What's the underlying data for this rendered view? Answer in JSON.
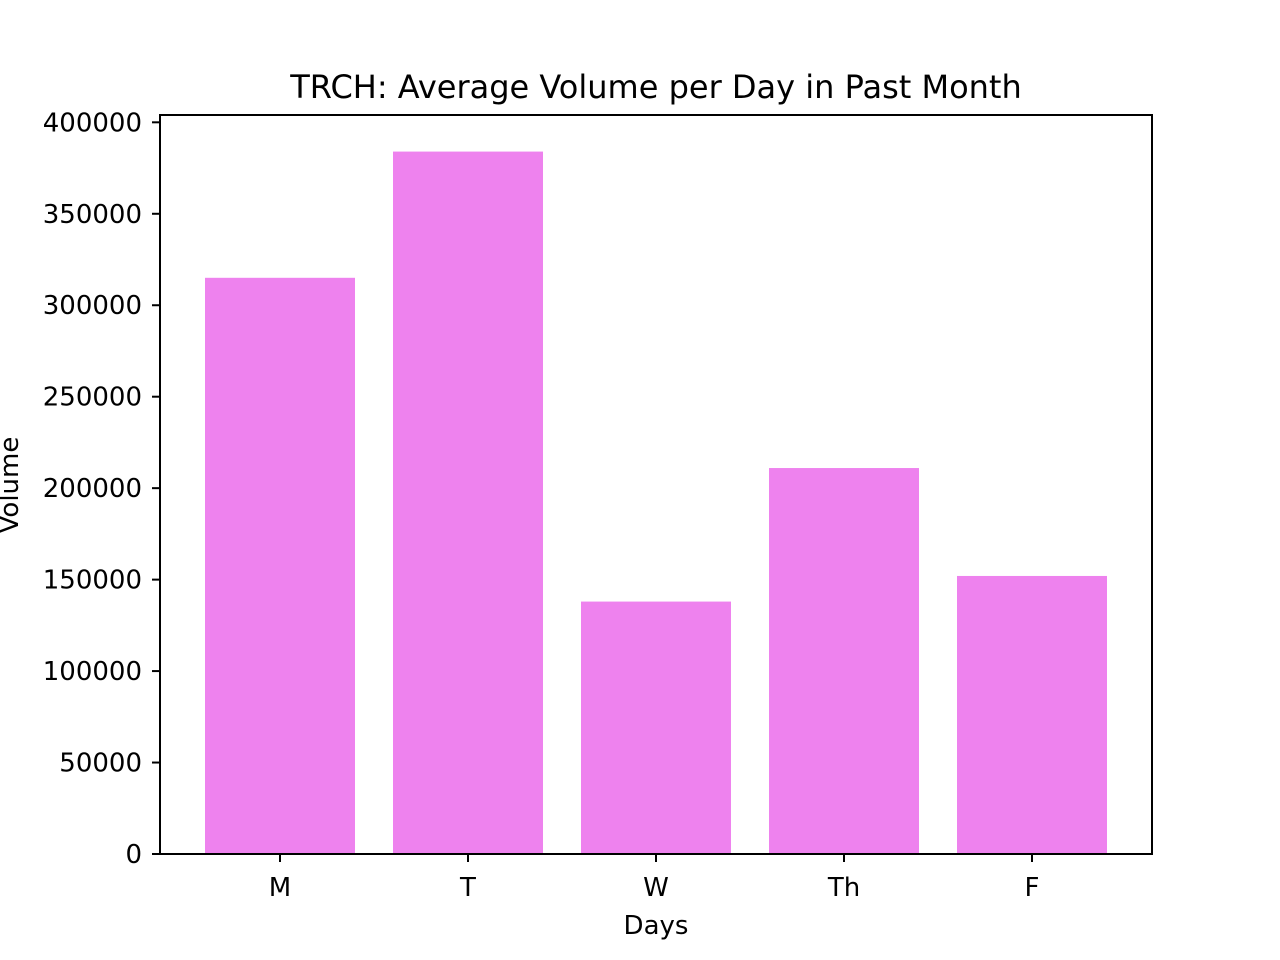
{
  "chart_data": {
    "type": "bar",
    "title": "TRCH: Average Volume per Day in Past Month",
    "xlabel": "Days",
    "ylabel": "Volume",
    "categories": [
      "M",
      "T",
      "W",
      "Th",
      "F"
    ],
    "values": [
      315000,
      384000,
      138000,
      211000,
      152000
    ],
    "ylim": [
      0,
      404000
    ],
    "yticks": [
      0,
      50000,
      100000,
      150000,
      200000,
      250000,
      300000,
      350000,
      400000
    ],
    "ytick_labels": [
      "0",
      "50000",
      "100000",
      "150000",
      "200000",
      "250000",
      "300000",
      "350000",
      "400000"
    ],
    "bar_color": "#ee82ee",
    "grid": false,
    "legend": "none"
  }
}
